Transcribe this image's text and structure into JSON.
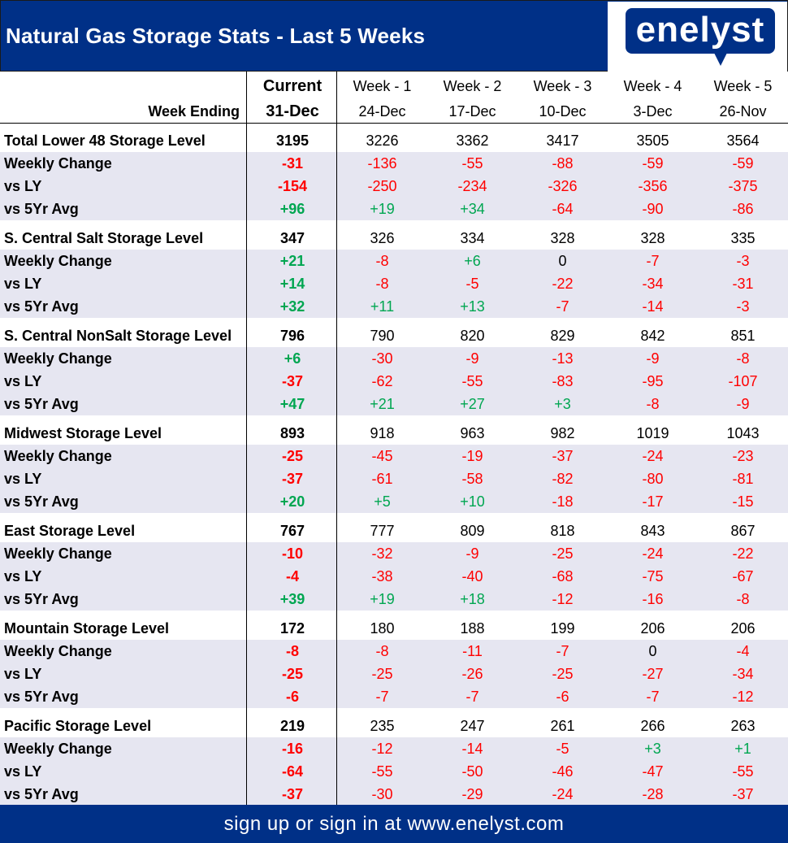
{
  "title": "Natural Gas Storage Stats - Last 5 Weeks",
  "logo": "enelyst",
  "columns": {
    "labels": [
      "Current",
      "Week - 1",
      "Week - 2",
      "Week - 3",
      "Week - 4",
      "Week - 5"
    ],
    "dates": [
      "31-Dec",
      "24-Dec",
      "17-Dec",
      "10-Dec",
      "3-Dec",
      "26-Nov"
    ],
    "week_ending_label": "Week Ending"
  },
  "sections": [
    {
      "rows": [
        {
          "label": "Total Lower 48 Storage Level",
          "values": [
            "3195",
            "3226",
            "3362",
            "3417",
            "3505",
            "3564"
          ]
        },
        {
          "label": "Weekly Change",
          "values": [
            "-31",
            "-136",
            "-55",
            "-88",
            "-59",
            "-59"
          ]
        },
        {
          "label": "vs LY",
          "values": [
            "-154",
            "-250",
            "-234",
            "-326",
            "-356",
            "-375"
          ]
        },
        {
          "label": "vs 5Yr Avg",
          "values": [
            "+96",
            "+19",
            "+34",
            "-64",
            "-90",
            "-86"
          ]
        }
      ]
    },
    {
      "rows": [
        {
          "label": "S. Central Salt Storage Level",
          "values": [
            "347",
            "326",
            "334",
            "328",
            "328",
            "335"
          ]
        },
        {
          "label": "Weekly Change",
          "values": [
            "+21",
            "-8",
            "+6",
            "0",
            "-7",
            "-3"
          ]
        },
        {
          "label": "vs LY",
          "values": [
            "+14",
            "-8",
            "-5",
            "-22",
            "-34",
            "-31"
          ]
        },
        {
          "label": "vs 5Yr Avg",
          "values": [
            "+32",
            "+11",
            "+13",
            "-7",
            "-14",
            "-3"
          ]
        }
      ]
    },
    {
      "rows": [
        {
          "label": "S. Central NonSalt Storage Level",
          "values": [
            "796",
            "790",
            "820",
            "829",
            "842",
            "851"
          ]
        },
        {
          "label": "Weekly Change",
          "values": [
            "+6",
            "-30",
            "-9",
            "-13",
            "-9",
            "-8"
          ]
        },
        {
          "label": "vs LY",
          "values": [
            "-37",
            "-62",
            "-55",
            "-83",
            "-95",
            "-107"
          ]
        },
        {
          "label": "vs 5Yr Avg",
          "values": [
            "+47",
            "+21",
            "+27",
            "+3",
            "-8",
            "-9"
          ]
        }
      ]
    },
    {
      "rows": [
        {
          "label": "Midwest Storage Level",
          "values": [
            "893",
            "918",
            "963",
            "982",
            "1019",
            "1043"
          ]
        },
        {
          "label": "Weekly Change",
          "values": [
            "-25",
            "-45",
            "-19",
            "-37",
            "-24",
            "-23"
          ]
        },
        {
          "label": "vs LY",
          "values": [
            "-37",
            "-61",
            "-58",
            "-82",
            "-80",
            "-81"
          ]
        },
        {
          "label": "vs 5Yr Avg",
          "values": [
            "+20",
            "+5",
            "+10",
            "-18",
            "-17",
            "-15"
          ]
        }
      ]
    },
    {
      "rows": [
        {
          "label": "East Storage Level",
          "values": [
            "767",
            "777",
            "809",
            "818",
            "843",
            "867"
          ]
        },
        {
          "label": "Weekly Change",
          "values": [
            "-10",
            "-32",
            "-9",
            "-25",
            "-24",
            "-22"
          ]
        },
        {
          "label": "vs LY",
          "values": [
            "-4",
            "-38",
            "-40",
            "-68",
            "-75",
            "-67"
          ]
        },
        {
          "label": "vs 5Yr Avg",
          "values": [
            "+39",
            "+19",
            "+18",
            "-12",
            "-16",
            "-8"
          ]
        }
      ]
    },
    {
      "rows": [
        {
          "label": "Mountain Storage Level",
          "values": [
            "172",
            "180",
            "188",
            "199",
            "206",
            "206"
          ]
        },
        {
          "label": "Weekly Change",
          "values": [
            "-8",
            "-8",
            "-11",
            "-7",
            "0",
            "-4"
          ]
        },
        {
          "label": "vs LY",
          "values": [
            "-25",
            "-25",
            "-26",
            "-25",
            "-27",
            "-34"
          ]
        },
        {
          "label": "vs 5Yr Avg",
          "values": [
            "-6",
            "-7",
            "-7",
            "-6",
            "-7",
            "-12"
          ]
        }
      ]
    },
    {
      "rows": [
        {
          "label": "Pacific Storage Level",
          "values": [
            "219",
            "235",
            "247",
            "261",
            "266",
            "263"
          ]
        },
        {
          "label": "Weekly Change",
          "values": [
            "-16",
            "-12",
            "-14",
            "-5",
            "+3",
            "+1"
          ]
        },
        {
          "label": "vs LY",
          "values": [
            "-64",
            "-55",
            "-50",
            "-46",
            "-47",
            "-55"
          ]
        },
        {
          "label": "vs 5Yr Avg",
          "values": [
            "-37",
            "-30",
            "-29",
            "-24",
            "-28",
            "-37"
          ]
        }
      ]
    }
  ],
  "colors": {
    "brand": "#003087",
    "negative": "#ff0000",
    "positive": "#00a651",
    "alt_row": "#e6e6f1"
  },
  "footer": "sign up or sign in at www.enelyst.com"
}
